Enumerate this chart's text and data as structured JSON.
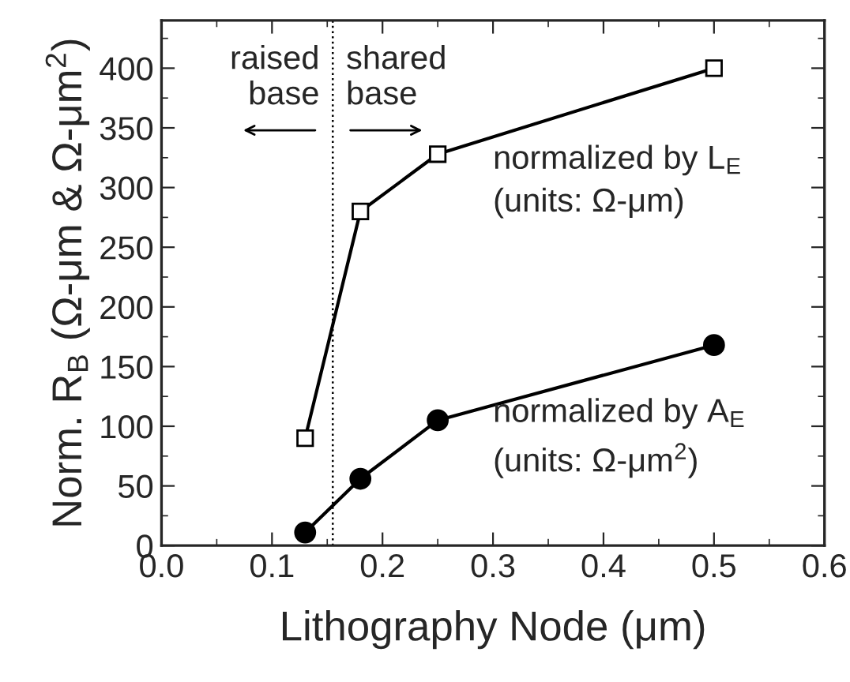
{
  "chart_data": {
    "type": "line",
    "xlabel": "Lithography Node (μm)",
    "ylabel": "Norm. R$_{B}$ (Ω-μm & Ω-μm$^{2}$)",
    "xlim": [
      0.0,
      0.6
    ],
    "xticks": [
      {
        "value": 0,
        "label": "0.0"
      },
      0.1,
      0.2,
      0.3,
      0.4,
      0.5,
      0.6
    ],
    "ylim": [
      0,
      440
    ],
    "yticks": [
      0,
      50,
      100,
      150,
      200,
      250,
      300,
      350,
      400
    ],
    "series": [
      {
        "name": "normalized by L$_{E}$\n(units: Ω-μm)",
        "color": "#000000",
        "marker": "square",
        "x": [
          0.13,
          0.18,
          0.25,
          0.5
        ],
        "values": [
          90,
          280,
          328,
          400
        ]
      },
      {
        "name": "normalized by A$_{E}$\n(units: Ω-μm$^{2}$)",
        "color": "#000000",
        "marker": "circle",
        "x": [
          0.13,
          0.18,
          0.25,
          0.5
        ],
        "values": [
          11,
          56,
          105,
          168
        ]
      }
    ],
    "ref_lines": [
      {
        "axis": "x",
        "value": 0.155,
        "line_style": "dotted",
        "color": "#000000"
      }
    ],
    "annotations": [
      "raised\nbase",
      "shared\nbase"
    ],
    "grid": false,
    "legend": false
  }
}
